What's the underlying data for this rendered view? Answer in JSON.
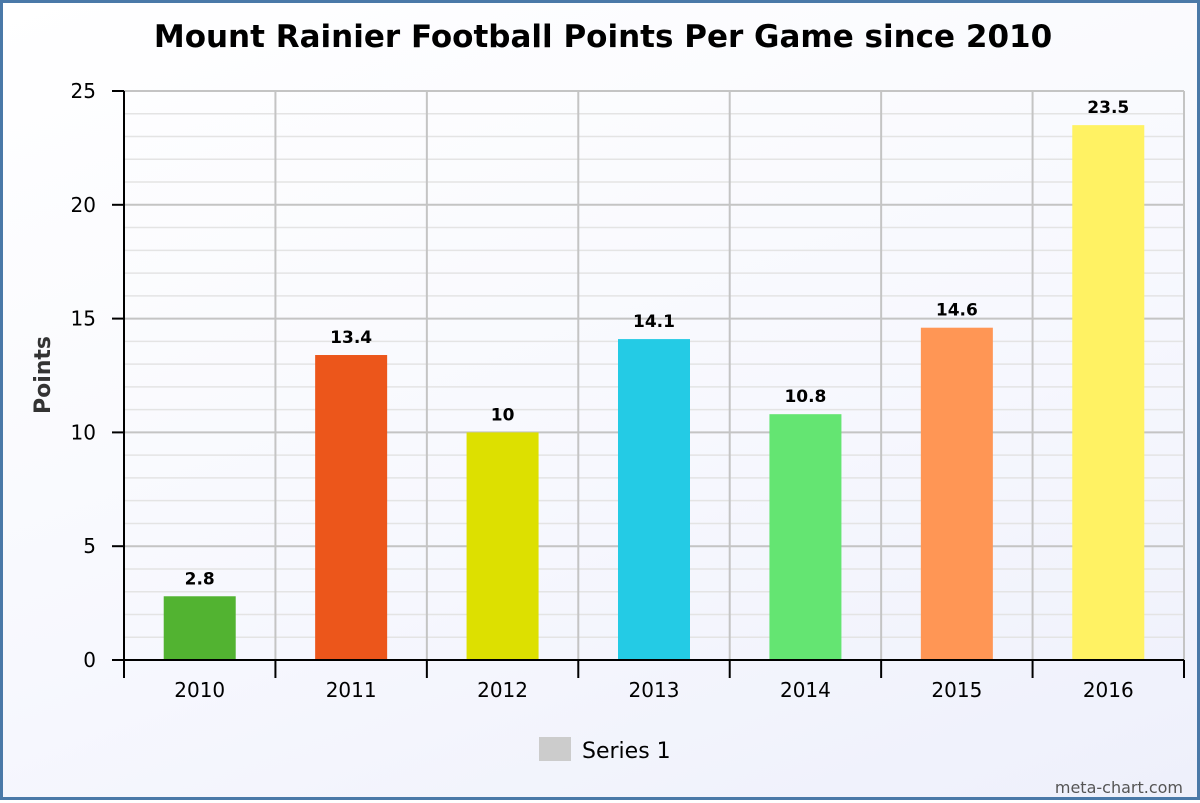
{
  "chart_data": {
    "type": "bar",
    "title": "Mount Rainier Football Points Per Game since 2010",
    "xlabel": "",
    "ylabel": "Points",
    "categories": [
      "2010",
      "2011",
      "2012",
      "2013",
      "2014",
      "2015",
      "2016"
    ],
    "values": [
      2.8,
      13.4,
      10,
      14.1,
      10.8,
      14.6,
      23.5
    ],
    "data_labels": [
      "2.8",
      "13.4",
      "10",
      "14.1",
      "10.8",
      "14.6",
      "23.5"
    ],
    "colors": [
      "#52b331",
      "#ec561b",
      "#dde000",
      "#24cbe5",
      "#64e572",
      "#ff9655",
      "#fff263"
    ],
    "ylim": [
      0,
      25
    ],
    "yticks": [
      "0",
      "5",
      "10",
      "15",
      "20",
      "25"
    ],
    "grid": true,
    "legend": {
      "position": "bottom-center",
      "entries": [
        {
          "name": "Series 1",
          "color": "#cccccc"
        }
      ]
    }
  },
  "watermark": "meta-chart.com"
}
